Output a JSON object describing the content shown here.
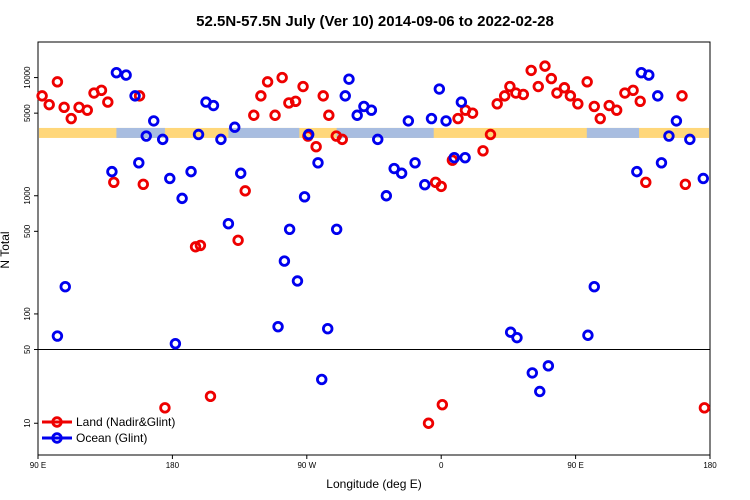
{
  "chart_data": {
    "type": "scatter",
    "title": "52.5N-57.5N July (Ver 10)   2014-09-06 to 2022-02-28",
    "xlabel": "Longitude (deg E)",
    "ylabel": "N Total",
    "xlim": [
      90,
      270
    ],
    "ylim": [
      5,
      20000
    ],
    "yscale": "log",
    "y_break": 50,
    "x_ticks": [
      {
        "value": 90,
        "label": "90 E"
      },
      {
        "value": 126,
        "label": "180"
      },
      {
        "value": 162,
        "label": "90 W"
      },
      {
        "value": 198,
        "label": "0"
      },
      {
        "value": 234,
        "label": "90 E"
      },
      {
        "value": 270,
        "label": "180"
      }
    ],
    "y_ticks": [
      {
        "value": 10,
        "label": "10"
      },
      {
        "value": 50,
        "label": "50"
      },
      {
        "value": 100,
        "label": "100"
      },
      {
        "value": 500,
        "label": "500"
      },
      {
        "value": 1000,
        "label": "1000"
      },
      {
        "value": 5000,
        "label": "5000"
      },
      {
        "value": 10000,
        "label": "10000"
      }
    ],
    "band": {
      "value": 3400,
      "land_color": "#ffd77a",
      "ocean_color": "#a8bde0"
    },
    "legend": {
      "position": "bottom-left"
    },
    "series": [
      {
        "name": "Land (Nadir&Glint)",
        "color": "#ee0000",
        "points": [
          [
            91.1,
            7000
          ],
          [
            93.0,
            5900
          ],
          [
            95.2,
            9200
          ],
          [
            97.0,
            5600
          ],
          [
            98.9,
            4500
          ],
          [
            101.0,
            5600
          ],
          [
            103.2,
            5300
          ],
          [
            105.0,
            7400
          ],
          [
            107.0,
            7800
          ],
          [
            108.7,
            6200
          ],
          [
            110.3,
            1300
          ],
          [
            117.2,
            7000
          ],
          [
            118.2,
            1250
          ],
          [
            124.0,
            14
          ],
          [
            132.2,
            370
          ],
          [
            133.5,
            380
          ],
          [
            136.2,
            18
          ],
          [
            143.6,
            420
          ],
          [
            145.5,
            1100
          ],
          [
            147.8,
            4800
          ],
          [
            149.7,
            7000
          ],
          [
            151.5,
            9200
          ],
          [
            153.5,
            4800
          ],
          [
            155.4,
            10000
          ],
          [
            157.2,
            6100
          ],
          [
            159.0,
            6300
          ],
          [
            161.0,
            8400
          ],
          [
            162.3,
            3200
          ],
          [
            164.5,
            2600
          ],
          [
            166.4,
            7000
          ],
          [
            167.9,
            4800
          ],
          [
            169.9,
            3200
          ],
          [
            171.5,
            3000
          ],
          [
            194.6,
            10
          ],
          [
            196.5,
            1300
          ],
          [
            198.0,
            1200
          ],
          [
            198.3,
            15
          ],
          [
            201.0,
            2000
          ],
          [
            202.5,
            4500
          ],
          [
            204.5,
            5300
          ],
          [
            206.4,
            5000
          ],
          [
            209.2,
            2400
          ],
          [
            211.2,
            3300
          ],
          [
            213.0,
            6000
          ],
          [
            215.0,
            7000
          ],
          [
            216.4,
            8400
          ],
          [
            218.0,
            7400
          ],
          [
            220.0,
            7200
          ],
          [
            222.1,
            11500
          ],
          [
            224.0,
            8400
          ],
          [
            225.8,
            12500
          ],
          [
            227.5,
            9800
          ],
          [
            229.0,
            7400
          ],
          [
            231.0,
            8200
          ],
          [
            232.6,
            7000
          ],
          [
            234.6,
            6000
          ],
          [
            237.1,
            9200
          ],
          [
            239.0,
            5700
          ],
          [
            240.6,
            4500
          ],
          [
            243.0,
            5800
          ],
          [
            245.0,
            5300
          ],
          [
            247.2,
            7400
          ],
          [
            249.4,
            7800
          ],
          [
            251.3,
            6300
          ],
          [
            252.8,
            1300
          ],
          [
            262.5,
            7000
          ],
          [
            263.4,
            1250
          ],
          [
            268.5,
            14
          ]
        ]
      },
      {
        "name": "Ocean (Glint)",
        "color": "#0000ee",
        "points": [
          [
            95.2,
            65
          ],
          [
            97.3,
            170
          ],
          [
            109.8,
            1600
          ],
          [
            111.0,
            11000
          ],
          [
            113.6,
            10500
          ],
          [
            116.0,
            7000
          ],
          [
            117.0,
            1900
          ],
          [
            119.0,
            3200
          ],
          [
            121.0,
            4300
          ],
          [
            123.4,
            3000
          ],
          [
            125.3,
            1400
          ],
          [
            126.8,
            56
          ],
          [
            128.6,
            950
          ],
          [
            131.0,
            1600
          ],
          [
            133.0,
            3300
          ],
          [
            135.0,
            6200
          ],
          [
            137.0,
            5800
          ],
          [
            139.0,
            3000
          ],
          [
            141.0,
            580
          ],
          [
            142.7,
            3800
          ],
          [
            144.3,
            1550
          ],
          [
            154.3,
            78
          ],
          [
            156.0,
            280
          ],
          [
            157.4,
            520
          ],
          [
            159.5,
            190
          ],
          [
            161.4,
            980
          ],
          [
            162.5,
            3300
          ],
          [
            165.0,
            1900
          ],
          [
            166.0,
            26
          ],
          [
            167.6,
            75
          ],
          [
            170.0,
            520
          ],
          [
            172.3,
            7000
          ],
          [
            173.3,
            9700
          ],
          [
            175.5,
            4800
          ],
          [
            177.3,
            5700
          ],
          [
            179.3,
            5300
          ],
          [
            181.0,
            3000
          ],
          [
            183.3,
            1000
          ],
          [
            185.4,
            1700
          ],
          [
            187.4,
            1550
          ],
          [
            189.2,
            4300
          ],
          [
            191.0,
            1900
          ],
          [
            193.6,
            1240
          ],
          [
            195.4,
            4500
          ],
          [
            197.5,
            8000
          ],
          [
            199.3,
            4300
          ],
          [
            201.5,
            2100
          ],
          [
            203.4,
            6200
          ],
          [
            204.4,
            2100
          ],
          [
            216.6,
            70
          ],
          [
            218.3,
            63
          ],
          [
            222.4,
            30
          ],
          [
            224.4,
            20
          ],
          [
            226.7,
            35
          ],
          [
            237.3,
            66
          ],
          [
            239.0,
            170
          ],
          [
            250.4,
            1600
          ],
          [
            251.6,
            11000
          ],
          [
            253.6,
            10500
          ],
          [
            256.0,
            7000
          ],
          [
            257.0,
            1900
          ],
          [
            259.0,
            3200
          ],
          [
            261.0,
            4300
          ],
          [
            264.6,
            3000
          ],
          [
            268.2,
            1400
          ]
        ]
      }
    ]
  }
}
